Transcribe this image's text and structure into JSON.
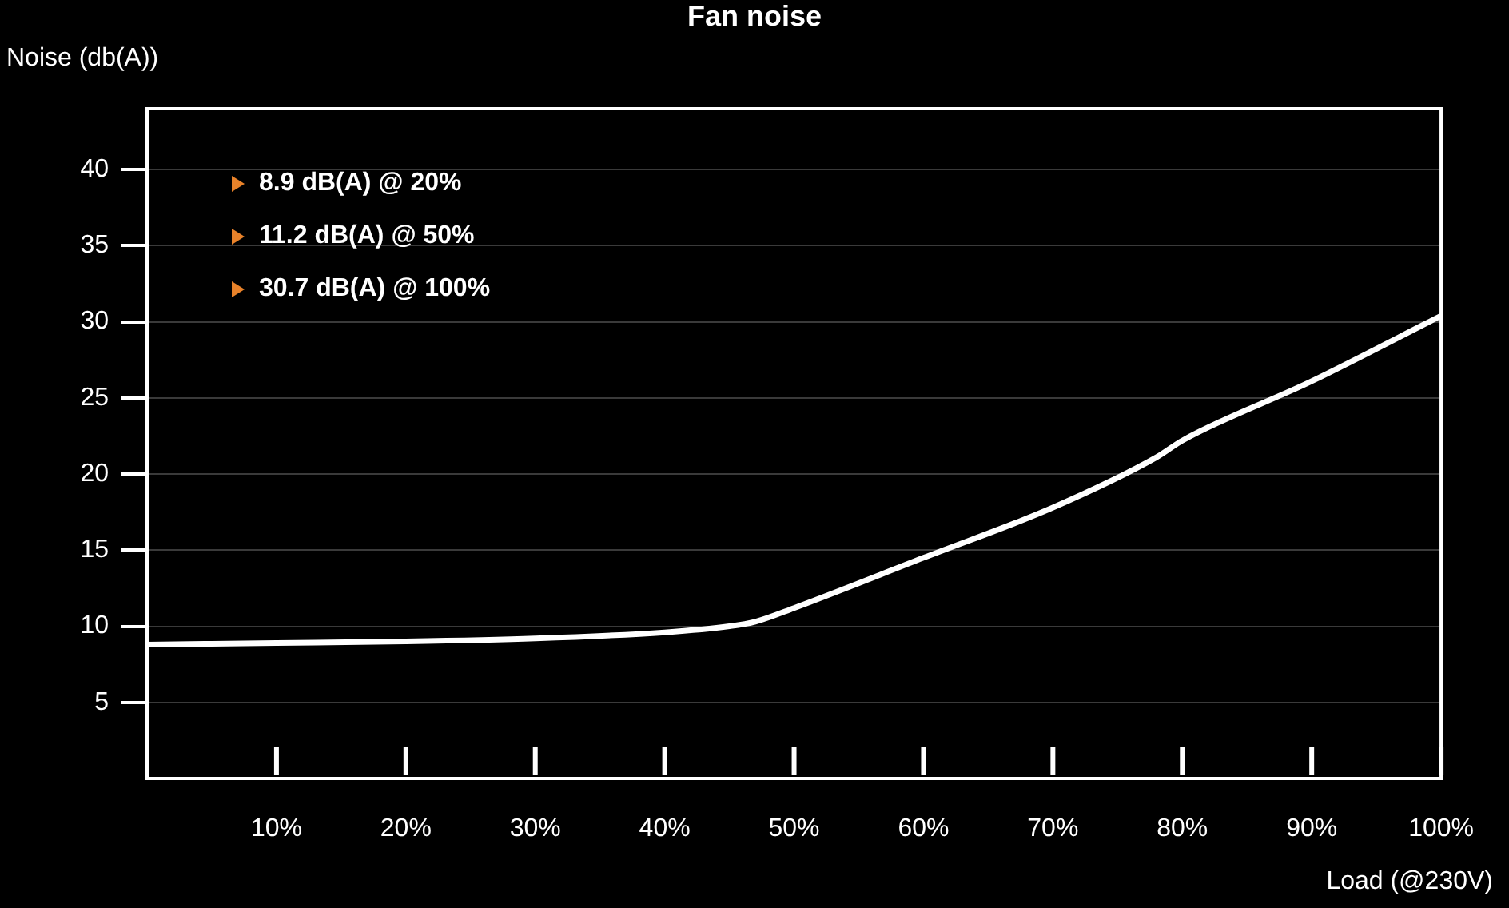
{
  "chart_data": {
    "type": "line",
    "title": "Fan noise",
    "xlabel": "Load (@230V)",
    "ylabel": "Noise (db(A))",
    "annotations": [
      "8.9 dB(A) @ 20%",
      "11.2 dB(A) @ 50%",
      "30.7 dB(A) @ 100%"
    ],
    "x": [
      0,
      10,
      20,
      30,
      40,
      45,
      47,
      50,
      60,
      70,
      78,
      80,
      90,
      100
    ],
    "series": [
      {
        "color": "#ffffff",
        "values": [
          8.8,
          8.9,
          9.0,
          9.2,
          9.6,
          10.0,
          10.3,
          11.2,
          14.5,
          17.8,
          21.1,
          22.2,
          26.1,
          30.4
        ]
      }
    ],
    "xlim": [
      0,
      100
    ],
    "xticks": [
      {
        "value": 10,
        "label": "10%"
      },
      {
        "value": 20,
        "label": "20%"
      },
      {
        "value": 30,
        "label": "30%"
      },
      {
        "value": 40,
        "label": "40%"
      },
      {
        "value": 50,
        "label": "50%"
      },
      {
        "value": 60,
        "label": "60%"
      },
      {
        "value": 70,
        "label": "70%"
      },
      {
        "value": 80,
        "label": "80%"
      },
      {
        "value": 90,
        "label": "90%"
      },
      {
        "value": 100,
        "label": "100%"
      }
    ],
    "ylim": [
      0,
      44
    ],
    "yticks": [
      5,
      10,
      15,
      20,
      25,
      30,
      35,
      40
    ],
    "grid": "y",
    "legend": false,
    "marker": "none",
    "line_style": "solid"
  }
}
